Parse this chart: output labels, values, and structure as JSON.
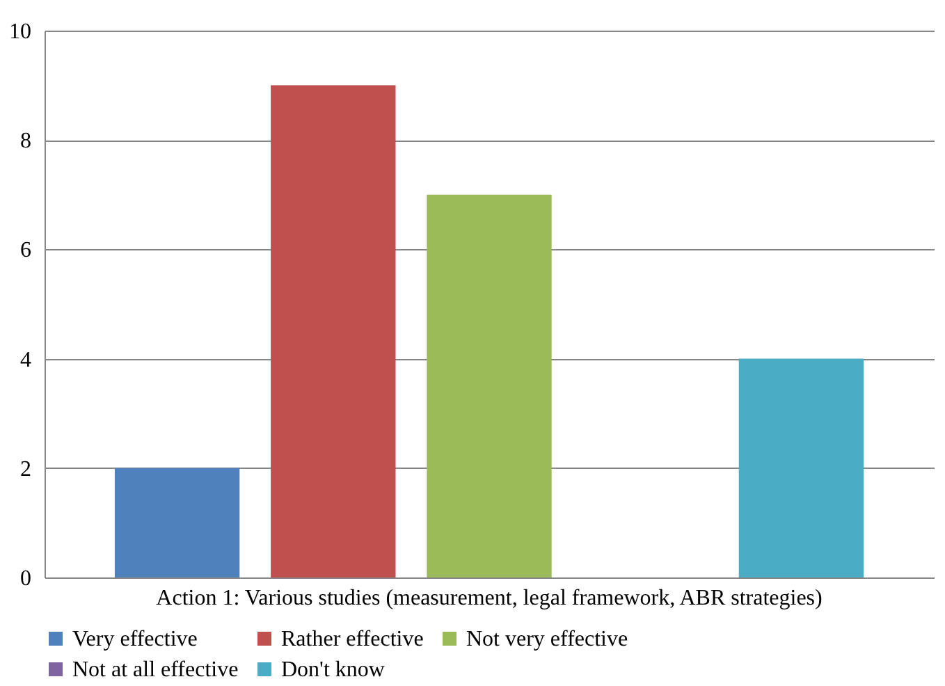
{
  "chart_data": {
    "type": "bar",
    "categories": [
      "Action 1: Various studies (measurement, legal framework, ABR strategies)"
    ],
    "series": [
      {
        "name": "Very effective",
        "color": "#4f81bd",
        "values": [
          2
        ]
      },
      {
        "name": "Rather effective",
        "color": "#c0504d",
        "values": [
          9
        ]
      },
      {
        "name": "Not very effective",
        "color": "#9bbb59",
        "values": [
          7
        ]
      },
      {
        "name": "Not at all effective",
        "color": "#8064a2",
        "values": [
          0
        ]
      },
      {
        "name": "Don't know",
        "color": "#4bacc6",
        "values": [
          4
        ]
      }
    ],
    "ylim": [
      0,
      10
    ],
    "yticks": [
      0,
      2,
      4,
      6,
      8,
      10
    ],
    "grid": "y",
    "legend": "bottom"
  }
}
